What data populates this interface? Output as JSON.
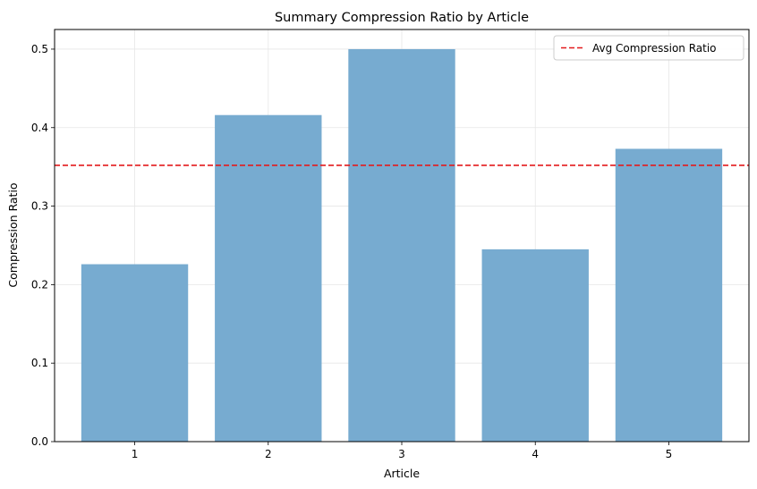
{
  "chart_data": {
    "type": "bar",
    "title": "Summary Compression Ratio by Article",
    "xlabel": "Article",
    "ylabel": "Compression Ratio",
    "categories": [
      "1",
      "2",
      "3",
      "4",
      "5"
    ],
    "values": [
      0.226,
      0.416,
      0.5,
      0.245,
      0.373
    ],
    "ylim": [
      0,
      0.525
    ],
    "yticks": [
      0.0,
      0.1,
      0.2,
      0.3,
      0.4,
      0.5
    ],
    "ytick_labels": [
      "0.0",
      "0.1",
      "0.2",
      "0.3",
      "0.4",
      "0.5"
    ],
    "grid": true,
    "bar_color": "#77abd0",
    "reference_line": {
      "name": "Avg Compression Ratio",
      "value": 0.352,
      "color": "#e31a1c",
      "style": "dashed"
    },
    "legend": {
      "placement": "top-right",
      "entries": [
        "Avg Compression Ratio"
      ]
    }
  }
}
